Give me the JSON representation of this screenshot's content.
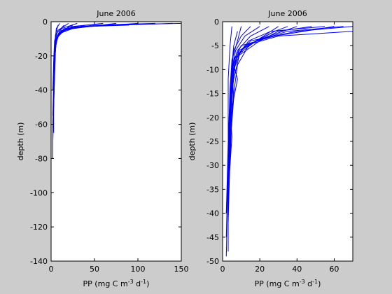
{
  "chart_data": [
    {
      "type": "line",
      "title": "June 2006",
      "xlabel": "PP (mg C m",
      "xlabel_sup1": "-3",
      "xlabel_mid": " d",
      "xlabel_sup2": "-1",
      "xlabel_end": ")",
      "ylabel": "depth (m)",
      "xlim": [
        0,
        150
      ],
      "ylim": [
        -140,
        0
      ],
      "xticks": [
        0,
        50,
        100,
        150
      ],
      "yticks": [
        0,
        -20,
        -40,
        -60,
        -80,
        -100,
        -120,
        -140
      ],
      "line_color": "#0000ff",
      "grid": false,
      "series": [
        {
          "x": [
            150,
            60,
            20,
            8,
            5,
            4,
            3
          ],
          "y": [
            -1,
            -2,
            -4,
            -8,
            -15,
            -25,
            -40
          ]
        },
        {
          "x": [
            140,
            80,
            25,
            10,
            6,
            4,
            3
          ],
          "y": [
            -1,
            -2,
            -3,
            -6,
            -12,
            -22,
            -38
          ]
        },
        {
          "x": [
            120,
            50,
            15,
            7,
            5,
            4,
            3,
            2
          ],
          "y": [
            -1,
            -2,
            -4,
            -9,
            -16,
            -30,
            -50,
            -70
          ]
        },
        {
          "x": [
            100,
            40,
            12,
            6,
            4,
            3,
            2,
            2
          ],
          "y": [
            -1,
            -3,
            -5,
            -10,
            -20,
            -40,
            -60,
            -80
          ]
        },
        {
          "x": [
            90,
            30,
            10,
            5,
            4,
            3
          ],
          "y": [
            -2,
            -3,
            -6,
            -12,
            -24,
            -45
          ]
        },
        {
          "x": [
            75,
            25,
            9,
            5,
            4,
            3,
            3
          ],
          "y": [
            -1,
            -4,
            -7,
            -14,
            -28,
            -48,
            -65
          ]
        },
        {
          "x": [
            60,
            20,
            8,
            4,
            3,
            2
          ],
          "y": [
            -1,
            -3,
            -8,
            -15,
            -30,
            -55
          ]
        },
        {
          "x": [
            40,
            15,
            6,
            4,
            3
          ],
          "y": [
            -2,
            -5,
            -10,
            -20,
            -35
          ]
        },
        {
          "x": [
            30,
            12,
            6,
            5,
            4,
            3
          ],
          "y": [
            -1,
            -4,
            -9,
            -18,
            -32,
            -50
          ]
        },
        {
          "x": [
            25,
            10,
            5,
            4,
            3
          ],
          "y": [
            -2,
            -6,
            -12,
            -24,
            -42
          ]
        },
        {
          "x": [
            20,
            8,
            4,
            3,
            2
          ],
          "y": [
            -1,
            -5,
            -11,
            -22,
            -40
          ]
        },
        {
          "x": [
            15,
            6,
            4,
            3,
            3,
            2
          ],
          "y": [
            -2,
            -7,
            -14,
            -26,
            -44,
            -62
          ]
        },
        {
          "x": [
            10,
            6,
            5,
            4,
            3
          ],
          "y": [
            -1,
            -4,
            -10,
            -20,
            -36
          ]
        },
        {
          "x": [
            8,
            5,
            4,
            3
          ],
          "y": [
            -2,
            -8,
            -16,
            -30
          ]
        }
      ]
    },
    {
      "type": "line",
      "title": "June 2006",
      "xlabel": "PP (mg C m",
      "xlabel_sup1": "-3",
      "xlabel_mid": " d",
      "xlabel_sup2": "-1",
      "xlabel_end": ")",
      "ylabel": "depth (m)",
      "xlim": [
        0,
        70
      ],
      "ylim": [
        -50,
        0
      ],
      "xticks": [
        0,
        20,
        40,
        60
      ],
      "yticks": [
        0,
        -5,
        -10,
        -15,
        -20,
        -25,
        -30,
        -35,
        -40,
        -45,
        -50
      ],
      "line_color": "#0000ff",
      "grid": false,
      "series": [
        {
          "x": [
            70,
            40,
            15,
            8,
            5,
            4,
            3,
            2
          ],
          "y": [
            -1,
            -2,
            -4,
            -7,
            -12,
            -20,
            -30,
            -40
          ]
        },
        {
          "x": [
            70,
            30,
            12,
            6,
            5,
            4,
            3
          ],
          "y": [
            -2,
            -3,
            -5,
            -8,
            -14,
            -24,
            -36
          ]
        },
        {
          "x": [
            65,
            35,
            18,
            8,
            5,
            4,
            3
          ],
          "y": [
            -1,
            -2,
            -4,
            -7,
            -11,
            -20,
            -32
          ]
        },
        {
          "x": [
            60,
            28,
            10,
            6,
            4,
            3,
            2
          ],
          "y": [
            -1,
            -3,
            -5,
            -8,
            -15,
            -28,
            -45
          ]
        },
        {
          "x": [
            55,
            26,
            14,
            7,
            5,
            4,
            3
          ],
          "y": [
            -1,
            -2,
            -4,
            -8,
            -14,
            -22,
            -34
          ]
        },
        {
          "x": [
            48,
            30,
            20,
            9,
            6,
            4,
            3
          ],
          "y": [
            -1,
            -2,
            -4,
            -7,
            -12,
            -18,
            -30
          ]
        },
        {
          "x": [
            40,
            25,
            12,
            7,
            5,
            4,
            3
          ],
          "y": [
            -1,
            -3,
            -5,
            -8,
            -14,
            -24,
            -38
          ]
        },
        {
          "x": [
            35,
            28,
            14,
            8,
            6,
            4,
            3
          ],
          "y": [
            -1,
            -2,
            -5,
            -9,
            -15,
            -26,
            -40
          ]
        },
        {
          "x": [
            30,
            22,
            10,
            6,
            5,
            4
          ],
          "y": [
            -1,
            -3,
            -6,
            -10,
            -18,
            -30
          ]
        },
        {
          "x": [
            28,
            18,
            9,
            6,
            8,
            5,
            4,
            3
          ],
          "y": [
            -2,
            -4,
            -6,
            -9,
            -12,
            -18,
            -28,
            -42
          ]
        },
        {
          "x": [
            25,
            15,
            8,
            5,
            4,
            3
          ],
          "y": [
            -1,
            -3,
            -6,
            -10,
            -20,
            -34
          ]
        },
        {
          "x": [
            20,
            12,
            7,
            5,
            6,
            4,
            3
          ],
          "y": [
            -1,
            -3,
            -6,
            -10,
            -16,
            -26,
            -40
          ]
        },
        {
          "x": [
            15,
            10,
            6,
            5,
            4,
            5,
            3
          ],
          "y": [
            -1,
            -3,
            -6,
            -10,
            -18,
            -24,
            -36
          ]
        },
        {
          "x": [
            10,
            8,
            5,
            4,
            3,
            3
          ],
          "y": [
            -1,
            -4,
            -8,
            -14,
            -26,
            -48
          ]
        },
        {
          "x": [
            8,
            6,
            5,
            4,
            3,
            2
          ],
          "y": [
            -2,
            -5,
            -9,
            -16,
            -30,
            -49
          ]
        },
        {
          "x": [
            5,
            4,
            3,
            3,
            2
          ],
          "y": [
            -1,
            -5,
            -12,
            -25,
            -40
          ]
        }
      ]
    }
  ]
}
